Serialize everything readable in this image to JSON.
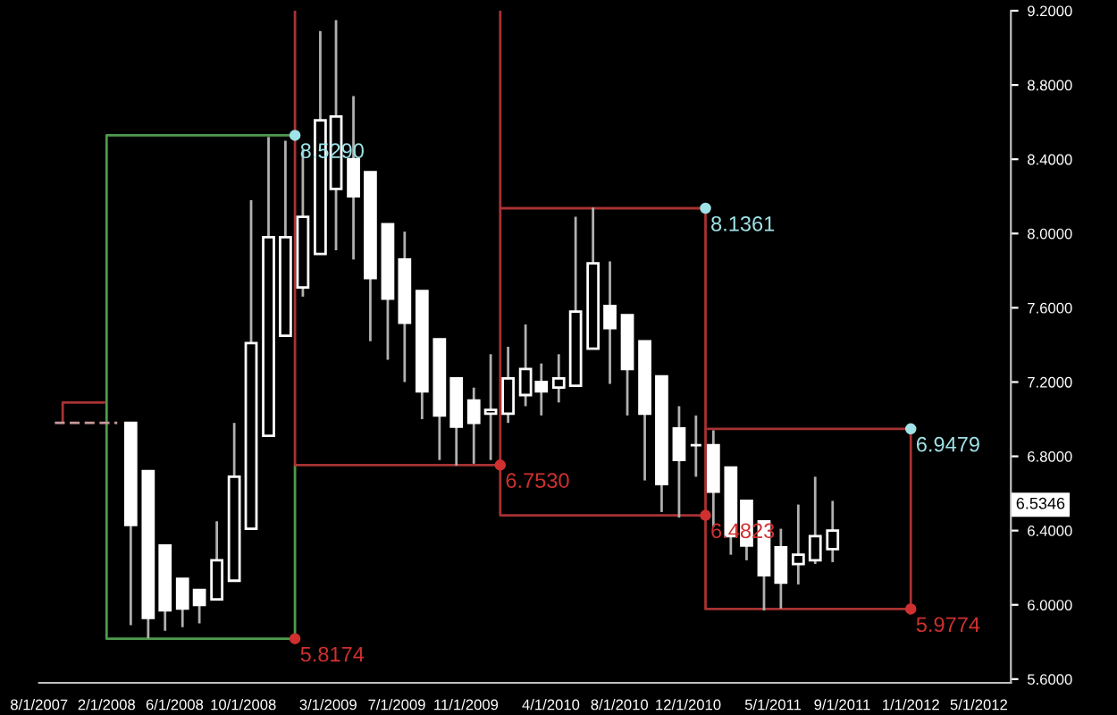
{
  "chart_data": {
    "type": "candlestick",
    "x": [
      "2008-03-15",
      "2008-04-15",
      "2008-05-15",
      "2008-06-15",
      "2008-07-15",
      "2008-08-15",
      "2008-09-15",
      "2008-10-15",
      "2008-11-15",
      "2008-12-15",
      "2009-01-15",
      "2009-02-15",
      "2009-03-15",
      "2009-04-15",
      "2009-05-15",
      "2009-06-15",
      "2009-07-15",
      "2009-08-15",
      "2009-09-15",
      "2009-10-15",
      "2009-11-15",
      "2009-12-15",
      "2010-01-15",
      "2010-02-15",
      "2010-03-15",
      "2010-04-15",
      "2010-05-15",
      "2010-06-15",
      "2010-07-15",
      "2010-08-15",
      "2010-09-15",
      "2010-10-15",
      "2010-11-15",
      "2010-12-15",
      "2011-01-15",
      "2011-02-15",
      "2011-03-15",
      "2011-04-15",
      "2011-05-15",
      "2011-06-15",
      "2011-07-15",
      "2011-08-15"
    ],
    "ohlc": [
      [
        6.98,
        6.98,
        5.89,
        6.43
      ],
      [
        6.72,
        6.72,
        5.82,
        5.93
      ],
      [
        6.32,
        6.32,
        5.86,
        5.97
      ],
      [
        6.14,
        6.14,
        5.88,
        5.98
      ],
      [
        6.08,
        6.08,
        5.9,
        6.0
      ],
      [
        6.03,
        6.45,
        6.03,
        6.24
      ],
      [
        6.13,
        6.98,
        6.13,
        6.69
      ],
      [
        6.41,
        8.18,
        6.41,
        7.41
      ],
      [
        6.91,
        8.52,
        6.91,
        7.98
      ],
      [
        7.45,
        8.5,
        7.45,
        7.98
      ],
      [
        7.71,
        8.45,
        7.66,
        8.09
      ],
      [
        7.89,
        9.09,
        7.89,
        8.61
      ],
      [
        8.24,
        9.15,
        7.91,
        8.63
      ],
      [
        8.4,
        8.74,
        7.86,
        8.2
      ],
      [
        8.33,
        8.33,
        7.42,
        7.76
      ],
      [
        8.05,
        8.05,
        7.32,
        7.65
      ],
      [
        7.86,
        8.01,
        7.2,
        7.52
      ],
      [
        7.69,
        7.69,
        7.0,
        7.15
      ],
      [
        7.43,
        7.43,
        6.78,
        7.02
      ],
      [
        7.22,
        7.22,
        6.75,
        6.96
      ],
      [
        7.1,
        7.17,
        6.76,
        6.98
      ],
      [
        7.03,
        7.35,
        6.78,
        7.05
      ],
      [
        7.03,
        7.39,
        6.98,
        7.22
      ],
      [
        7.13,
        7.51,
        7.07,
        7.27
      ],
      [
        7.2,
        7.3,
        7.02,
        7.15
      ],
      [
        7.17,
        7.35,
        7.09,
        7.22
      ],
      [
        7.18,
        8.09,
        7.18,
        7.58
      ],
      [
        7.38,
        8.14,
        7.38,
        7.84
      ],
      [
        7.61,
        7.85,
        7.19,
        7.49
      ],
      [
        7.56,
        7.56,
        7.02,
        7.27
      ],
      [
        7.42,
        7.42,
        6.67,
        7.03
      ],
      [
        7.23,
        7.23,
        6.5,
        6.65
      ],
      [
        6.95,
        7.07,
        6.47,
        6.78
      ],
      [
        6.86,
        7.02,
        6.69,
        6.86
      ],
      [
        6.86,
        6.94,
        6.42,
        6.61
      ],
      [
        6.74,
        6.74,
        6.27,
        6.37
      ],
      [
        6.56,
        6.56,
        6.24,
        6.32
      ],
      [
        6.45,
        6.45,
        5.97,
        6.16
      ],
      [
        6.31,
        6.41,
        5.98,
        6.12
      ],
      [
        6.22,
        6.54,
        6.11,
        6.27
      ],
      [
        6.24,
        6.69,
        6.22,
        6.37
      ],
      [
        6.3,
        6.56,
        6.23,
        6.4
      ]
    ],
    "color": "#ffffff",
    "series": [
      {
        "type": "line",
        "color": "#4e9a4e",
        "x": [
          "2009-01-01",
          "2008-02-01",
          "2008-02-01",
          "2009-01-01",
          "2009-01-01"
        ],
        "values": [
          8.529,
          8.529,
          5.8174,
          5.8174,
          6.753
        ]
      },
      {
        "type": "line",
        "color": "#a83232",
        "x": [
          "2009-01-01",
          "2009-01-01",
          "2010-01-01",
          "2010-01-01"
        ],
        "values": [
          9.2,
          6.753,
          6.753,
          9.2
        ]
      },
      {
        "type": "line",
        "color": "#a83232",
        "x": [
          "2010-01-01",
          "2011-01-01",
          "2011-01-01",
          "2010-01-01",
          "2010-01-01"
        ],
        "values": [
          8.1361,
          8.1361,
          6.4823,
          6.4823,
          6.753
        ]
      },
      {
        "type": "line",
        "color": "#a83232",
        "x": [
          "2011-01-01",
          "2012-01-01",
          "2012-01-01",
          "2011-01-01",
          "2011-01-01"
        ],
        "values": [
          6.9479,
          6.9479,
          5.9774,
          5.9774,
          6.4823
        ]
      },
      {
        "type": "line",
        "color": "#a83232",
        "x": [
          "2007-11-15",
          "2007-11-15",
          "2008-01-28"
        ],
        "values": [
          6.98,
          7.09,
          7.09
        ]
      },
      {
        "type": "line",
        "color": "#c89a9a",
        "line_style": "dashed",
        "x": [
          "2007-11-01",
          "2008-02-20"
        ],
        "values": [
          6.98,
          6.98
        ]
      }
    ],
    "annotations": [
      {
        "text": "8.5290",
        "x": "2009-01-01",
        "y": 8.529
      },
      {
        "text": "5.8174",
        "x": "2009-01-01",
        "y": 5.8174
      },
      {
        "text": "6.7530",
        "x": "2010-01-01",
        "y": 6.753
      },
      {
        "text": "8.1361",
        "x": "2011-01-01",
        "y": 8.1361
      },
      {
        "text": "6.4823",
        "x": "2011-01-01",
        "y": 6.4823
      },
      {
        "text": "6.9479",
        "x": "2012-01-01",
        "y": 6.9479
      },
      {
        "text": "5.9774",
        "x": "2012-01-01",
        "y": 5.9774
      },
      "6.5346"
    ],
    "xlim": [
      "2007-10-04",
      "2012-06-27"
    ],
    "xticks": [
      {
        "value": "2007-10-04",
        "label": "8/1/2007"
      },
      {
        "value": "2008-02-01",
        "label": "2/1/2008"
      },
      {
        "value": "2008-06-01",
        "label": "6/1/2008"
      },
      {
        "value": "2008-10-01",
        "label": "10/1/2008"
      },
      {
        "value": "2009-03-01",
        "label": "3/1/2009"
      },
      {
        "value": "2009-07-01",
        "label": "7/1/2009"
      },
      {
        "value": "2009-11-01",
        "label": "11/1/2009"
      },
      {
        "value": "2010-04-01",
        "label": "4/1/2010"
      },
      {
        "value": "2010-08-01",
        "label": "8/1/2010"
      },
      {
        "value": "2010-12-01",
        "label": "12/1/2010"
      },
      {
        "value": "2011-05-01",
        "label": "5/1/2011"
      },
      {
        "value": "2011-09-01",
        "label": "9/1/2011"
      },
      {
        "value": "2012-01-01",
        "label": "1/1/2012"
      },
      {
        "value": "2012-05-01",
        "label": "5/1/2012"
      }
    ],
    "ylim": [
      5.58,
      9.2
    ],
    "yticks": [
      {
        "value": 5.6,
        "label": "5.6000"
      },
      {
        "value": 6.0,
        "label": "6.0000"
      },
      {
        "value": 6.4,
        "label": "6.4000"
      },
      {
        "value": 6.8,
        "label": "6.8000"
      },
      {
        "value": 7.2,
        "label": "7.2000"
      },
      {
        "value": 7.6,
        "label": "7.6000"
      },
      {
        "value": 8.0,
        "label": "8.0000"
      },
      {
        "value": 8.4,
        "label": "8.4000"
      },
      {
        "value": 8.8,
        "label": "8.8000"
      },
      {
        "value": 9.2,
        "label": "9.2000"
      }
    ],
    "grid": false,
    "legend": false
  }
}
